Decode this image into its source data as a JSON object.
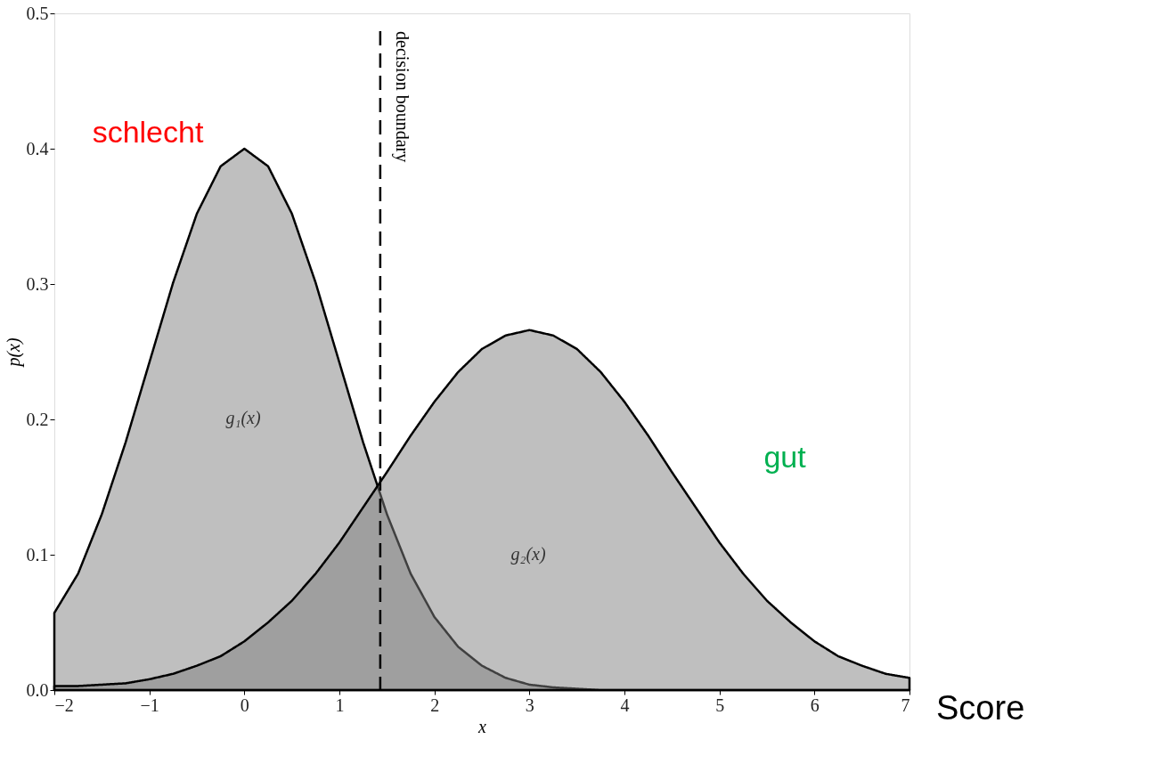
{
  "chart_data": {
    "type": "area",
    "xlabel": "x",
    "ylabel": "p(x)",
    "x": [
      -2,
      -1.75,
      -1.5,
      -1.25,
      -1,
      -0.75,
      -0.5,
      -0.25,
      0,
      0.25,
      0.5,
      0.75,
      1,
      1.25,
      1.5,
      1.75,
      2,
      2.25,
      2.5,
      2.75,
      3,
      3.25,
      3.5,
      3.75,
      4,
      4.25,
      4.5,
      4.75,
      5,
      5.25,
      5.5,
      5.75,
      6,
      6.25,
      6.5,
      6.75,
      7
    ],
    "series": [
      {
        "color": "#7f7f7f",
        "values": [
          0.057,
          0.086,
          0.13,
          0.183,
          0.242,
          0.301,
          0.352,
          0.387,
          0.4,
          0.387,
          0.352,
          0.301,
          0.242,
          0.183,
          0.13,
          0.086,
          0.054,
          0.032,
          0.018,
          0.009,
          0.004,
          0.002,
          0.001,
          0.0,
          0.0,
          0.0,
          0.0,
          0.0,
          0.0,
          0.0,
          0.0,
          0.0,
          0.0,
          0.0,
          0.0,
          0.0,
          0.0
        ]
      },
      {
        "color": "#808080",
        "values": [
          0.003,
          0.003,
          0.004,
          0.005,
          0.008,
          0.012,
          0.018,
          0.025,
          0.036,
          0.05,
          0.066,
          0.086,
          0.109,
          0.135,
          0.161,
          0.188,
          0.213,
          0.235,
          0.252,
          0.262,
          0.266,
          0.262,
          0.252,
          0.235,
          0.213,
          0.188,
          0.161,
          0.135,
          0.109,
          0.086,
          0.066,
          0.05,
          0.036,
          0.025,
          0.018,
          0.012,
          0.009
        ]
      }
    ],
    "xlim": [
      -2,
      7
    ],
    "xticks": [
      -2,
      -1,
      0,
      1,
      2,
      3,
      4,
      5,
      6,
      7
    ],
    "ylim": [
      0,
      0.5
    ],
    "yticks": [
      {
        "value": 0,
        "label": "0.0"
      },
      {
        "value": 0.1,
        "label": "0.1"
      },
      {
        "value": 0.2,
        "label": "0.2"
      },
      {
        "value": 0.3,
        "label": "0.3"
      },
      {
        "value": 0.4,
        "label": "0.4"
      },
      {
        "value": 0.5,
        "label": "0.5"
      }
    ],
    "ref_lines": [
      {
        "axis": "x",
        "value": 1.43,
        "label": "decision boundary",
        "line_style": "dashed",
        "color": "#000000"
      }
    ],
    "annotations": [
      "schlecht",
      "gut",
      "g₁(x)",
      "g₂(x)",
      "Score"
    ],
    "grid": false,
    "line_style": "solid"
  }
}
